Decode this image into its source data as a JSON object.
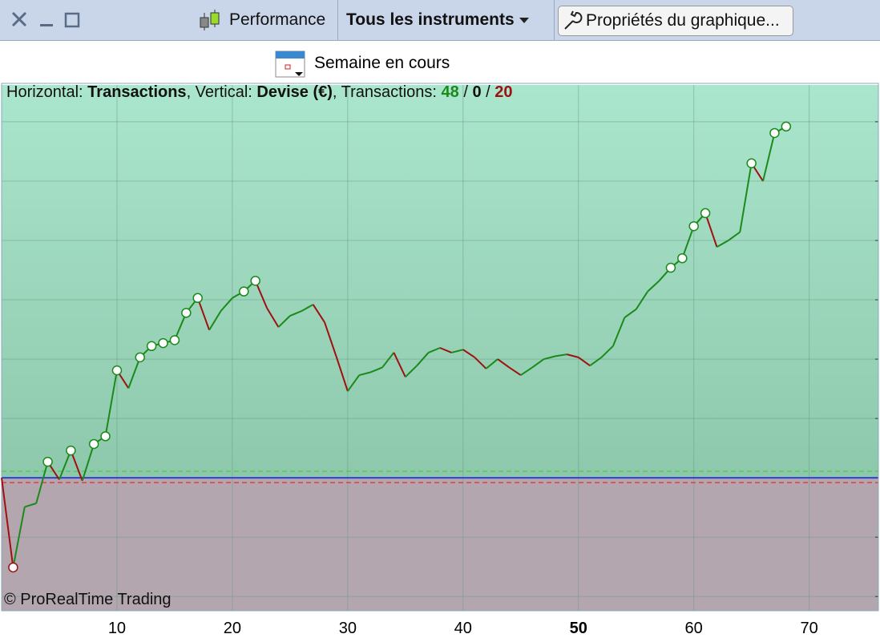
{
  "toolbar": {
    "performance": "Performance",
    "instruments": "Tous les instruments",
    "properties": "Propriétés du graphique..."
  },
  "period": "Semaine en cours",
  "info": {
    "h_label": "Horizontal:",
    "h_value": "Transactions",
    "v_label": ", Vertical:",
    "v_value": "Devise (€)",
    "t_label": ", Transactions:",
    "winning": 48,
    "neutral": 0,
    "losing": 20,
    "separator": "/"
  },
  "copyright": "© ProRealTime Trading",
  "chart_data": {
    "type": "line",
    "x": [
      0,
      1,
      2,
      3,
      4,
      5,
      6,
      7,
      8,
      9,
      10,
      11,
      12,
      13,
      14,
      15,
      16,
      17,
      18,
      19,
      20,
      21,
      22,
      23,
      24,
      25,
      26,
      27,
      28,
      29,
      30,
      31,
      32,
      33,
      34,
      35,
      36,
      37,
      38,
      39,
      40,
      41,
      42,
      43,
      44,
      45,
      46,
      47,
      48,
      49,
      50,
      51,
      52,
      53,
      54,
      55,
      56,
      57,
      58,
      59,
      60,
      61,
      62,
      63,
      64,
      65,
      66,
      67,
      68
    ],
    "values": [
      0,
      -1.51,
      -0.49,
      -0.43,
      0.27,
      -0.03,
      0.46,
      -0.05,
      0.57,
      0.7,
      1.81,
      1.51,
      2.03,
      2.22,
      2.27,
      2.32,
      2.78,
      3.03,
      2.49,
      2.81,
      3.03,
      3.14,
      3.32,
      2.86,
      2.54,
      2.73,
      2.81,
      2.92,
      2.62,
      2.05,
      1.46,
      1.73,
      1.78,
      1.86,
      2.11,
      1.7,
      1.89,
      2.11,
      2.19,
      2.11,
      2.16,
      2.03,
      1.84,
      2,
      1.86,
      1.73,
      1.86,
      2,
      2.05,
      2.08,
      2.03,
      1.89,
      2.03,
      2.22,
      2.7,
      2.84,
      3.14,
      3.32,
      3.54,
      3.7,
      4.24,
      4.46,
      3.89,
      4,
      4.14,
      5.3,
      5,
      5.81,
      5.92
    ],
    "up_color": "#1a8a1a",
    "down_color": "#a01010",
    "xlim": [
      0,
      76
    ],
    "xticks": [
      10,
      20,
      30,
      40,
      50,
      60,
      70
    ],
    "emphasized_xtick": 50,
    "ylim": [
      -2.24,
      6.62
    ],
    "yticks": [
      -2,
      -1,
      0,
      1,
      2,
      3,
      4,
      5,
      6
    ],
    "grid": true,
    "hlines": [
      {
        "value": 0.11,
        "color": "#55cc55",
        "dashed": true
      },
      {
        "value": -0.08,
        "color": "#e04040",
        "dashed": true
      },
      {
        "value": 0,
        "color": "#3040d0",
        "dashed": false
      }
    ]
  }
}
